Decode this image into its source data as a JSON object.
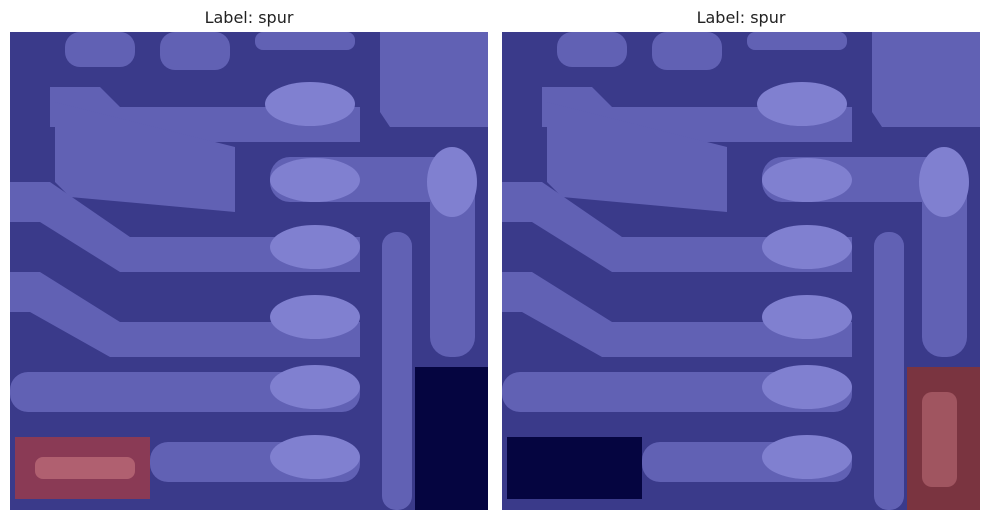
{
  "panels": [
    {
      "title": "Label: spur"
    },
    {
      "title": "Label: spur"
    }
  ],
  "colors": {
    "background": "#3a3a8a",
    "trace": "#6464b8",
    "trace_light": "#7a7acc",
    "pad": "#8282d4",
    "highlight_red": "#8a3a3a",
    "highlight_red_core": "#b05a55",
    "dark_box": "#050540"
  }
}
